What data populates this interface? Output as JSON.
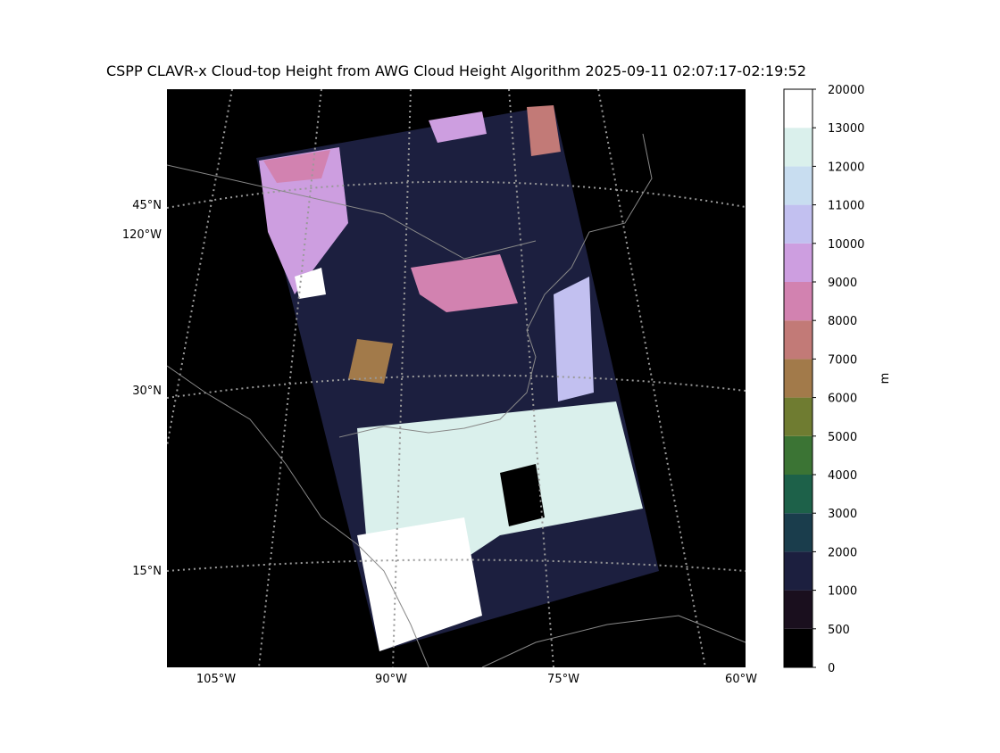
{
  "title": "CSPP CLAVR-x Cloud-top Height from AWG Cloud Height Algorithm 2025-09-11 02:07:17-02:19:52",
  "map": {
    "lat_labels": [
      "45°N",
      "30°N",
      "15°N"
    ],
    "side_lon_label": "120°W",
    "lon_labels": [
      "105°W",
      "90°W",
      "75°W",
      "60°W"
    ]
  },
  "colorbar": {
    "label": "m",
    "ticks": [
      0,
      500,
      1000,
      2000,
      3000,
      4000,
      5000,
      6000,
      7000,
      8000,
      9000,
      10000,
      11000,
      12000,
      13000,
      20000
    ],
    "colors": [
      "#000000",
      "#1a0f1e",
      "#1c1f3f",
      "#1a3d4c",
      "#1d6149",
      "#3b7434",
      "#6f7c31",
      "#a27a4a",
      "#c27a77",
      "#d282b0",
      "#cd9ee0",
      "#c2c0f0",
      "#c8ddf0",
      "#daf0ec",
      "#ffffff"
    ]
  }
}
